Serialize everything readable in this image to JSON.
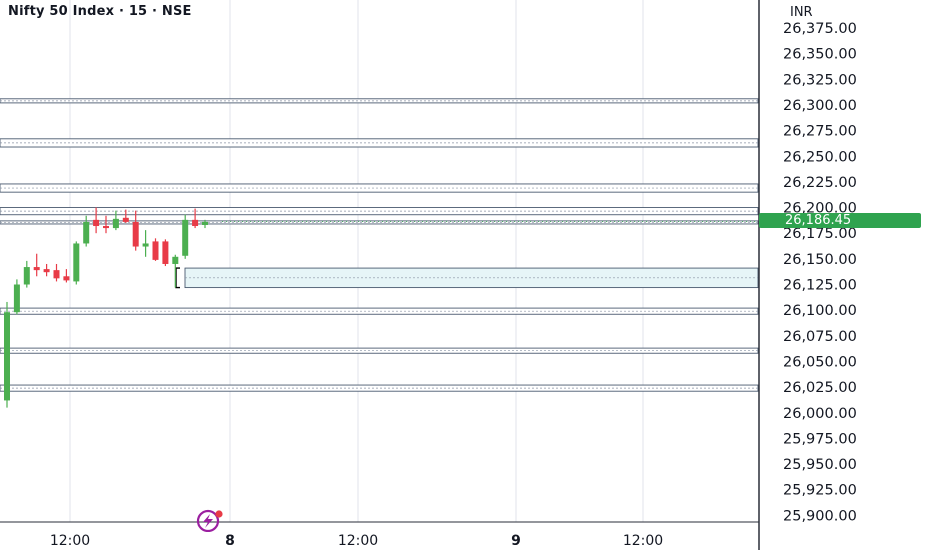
{
  "header": {
    "title": "Nifty 50 Index · 15 · NSE"
  },
  "price_axis": {
    "currency": "INR"
  },
  "last_price": {
    "label": "26,186.45",
    "value": 26186.45,
    "color": "#2fa34f"
  },
  "colors": {
    "up": "#4caf50",
    "down": "#e83b47",
    "zone_border": "#4a5a6f",
    "grid": "#e0e3eb",
    "text": "#131722"
  },
  "icons": {
    "bottom_logo": "lightning-bolt-icon"
  },
  "chart_data": {
    "type": "candlestick",
    "title": "Nifty 50 Index · 15 · NSE",
    "ylim": [
      25887,
      26395
    ],
    "yticks": [
      26375,
      26350,
      26325,
      26300,
      26275,
      26250,
      26225,
      26200,
      26175,
      26150,
      26125,
      26100,
      26075,
      26050,
      26025,
      26000,
      25975,
      25950,
      25925,
      25900
    ],
    "ytick_labels": [
      "26,375.00",
      "26,350.00",
      "26,325.00",
      "26,300.00",
      "26,275.00",
      "26,250.00",
      "26,225.00",
      "26,200.00",
      "26,175.00",
      "26,150.00",
      "26,125.00",
      "26,100.00",
      "26,075.00",
      "26,050.00",
      "26,025.00",
      "26,000.00",
      "25,975.00",
      "25,950.00",
      "25,925.00",
      "25,900.00"
    ],
    "xticks": [
      "12:00",
      "8",
      "12:00",
      "9",
      "12:00"
    ],
    "grid": true,
    "candles": [
      {
        "open": 26012,
        "high": 26108,
        "low": 26005,
        "close": 26098
      },
      {
        "open": 26098,
        "high": 26130,
        "low": 26096,
        "close": 26125
      },
      {
        "open": 26125,
        "high": 26148,
        "low": 26122,
        "close": 26142
      },
      {
        "open": 26142,
        "high": 26155,
        "low": 26133,
        "close": 26139
      },
      {
        "open": 26140,
        "high": 26145,
        "low": 26133,
        "close": 26137
      },
      {
        "open": 26139,
        "high": 26145,
        "low": 26128,
        "close": 26131
      },
      {
        "open": 26133,
        "high": 26140,
        "low": 26127,
        "close": 26129
      },
      {
        "open": 26128,
        "high": 26167,
        "low": 26125,
        "close": 26165
      },
      {
        "open": 26165,
        "high": 26192,
        "low": 26162,
        "close": 26186
      },
      {
        "open": 26188,
        "high": 26200,
        "low": 26175,
        "close": 26182
      },
      {
        "open": 26182,
        "high": 26192,
        "low": 26175,
        "close": 26180
      },
      {
        "open": 26180,
        "high": 26197,
        "low": 26178,
        "close": 26189
      },
      {
        "open": 26190,
        "high": 26198,
        "low": 26185,
        "close": 26186
      },
      {
        "open": 26186,
        "high": 26197,
        "low": 26158,
        "close": 26162
      },
      {
        "open": 26162,
        "high": 26178,
        "low": 26152,
        "close": 26165
      },
      {
        "open": 26167,
        "high": 26170,
        "low": 26148,
        "close": 26149
      },
      {
        "open": 26167,
        "high": 26169,
        "low": 26143,
        "close": 26145
      },
      {
        "open": 26145,
        "high": 26154,
        "low": 26122,
        "close": 26152
      },
      {
        "open": 26153,
        "high": 26193,
        "low": 26150,
        "close": 26188
      },
      {
        "open": 26188,
        "high": 26199,
        "low": 26180,
        "close": 26182
      },
      {
        "open": 26183,
        "high": 26188,
        "low": 26180,
        "close": 26186
      }
    ],
    "zones": [
      {
        "top": 26306,
        "bottom": 26302
      },
      {
        "top": 26267,
        "bottom": 26259
      },
      {
        "top": 26223,
        "bottom": 26215
      },
      {
        "top": 26200,
        "bottom": 26193
      },
      {
        "top": 26187,
        "bottom": 26184
      },
      {
        "top": 26141,
        "bottom": 26122
      },
      {
        "top": 26102,
        "bottom": 26096
      },
      {
        "top": 26063,
        "bottom": 26058
      },
      {
        "top": 26027,
        "bottom": 26021
      }
    ]
  }
}
